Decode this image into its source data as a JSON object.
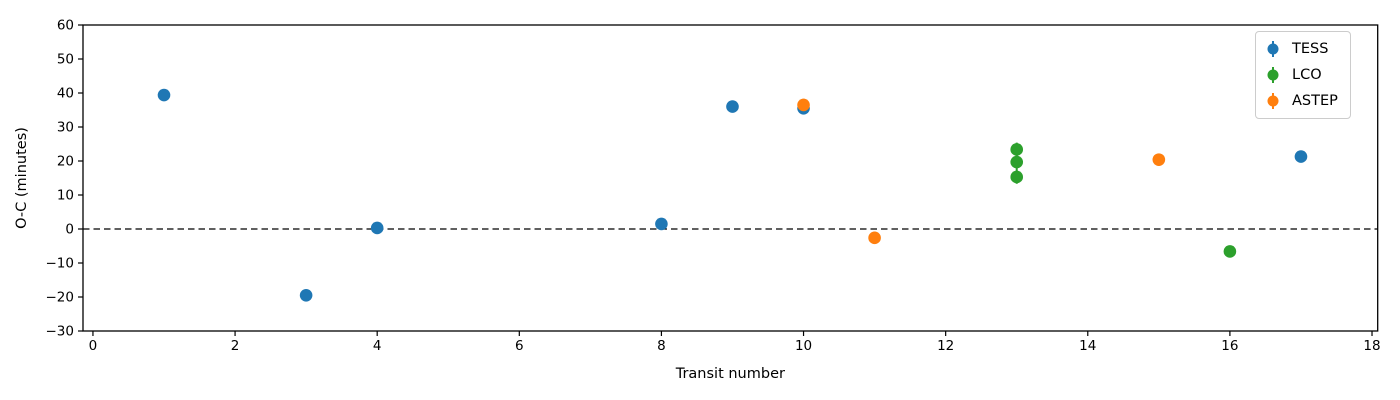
{
  "chart_data": {
    "type": "scatter",
    "title": "",
    "xlabel": "Transit number",
    "ylabel": "O-C (minutes)",
    "xlim": [
      -0.14,
      18.08
    ],
    "ylim": [
      -30,
      60
    ],
    "xticks": [
      0,
      2,
      4,
      6,
      8,
      10,
      12,
      14,
      16,
      18
    ],
    "yticks": [
      -30,
      -20,
      -10,
      0,
      10,
      20,
      30,
      40,
      50,
      60
    ],
    "grid": false,
    "zero_line": {
      "y": 0,
      "style": "dashed",
      "color": "#000000"
    },
    "legend_position": "upper right",
    "series": [
      {
        "name": "TESS",
        "color": "#1f77b4",
        "points": [
          {
            "x": 1,
            "y": 39.4,
            "yerr": 1.5
          },
          {
            "x": 3,
            "y": -19.5,
            "yerr": 1.5
          },
          {
            "x": 4,
            "y": 0.3,
            "yerr": 1.5
          },
          {
            "x": 8,
            "y": 1.5,
            "yerr": 1.5
          },
          {
            "x": 9,
            "y": 36.0,
            "yerr": 1.5
          },
          {
            "x": 10,
            "y": 35.5,
            "yerr": 1.5
          },
          {
            "x": 17,
            "y": 21.3,
            "yerr": 1.5
          }
        ]
      },
      {
        "name": "LCO",
        "color": "#2ca02c",
        "points": [
          {
            "x": 13,
            "y": 23.4,
            "yerr": 2.0
          },
          {
            "x": 13,
            "y": 19.7,
            "yerr": 2.5
          },
          {
            "x": 13,
            "y": 15.3,
            "yerr": 2.0
          },
          {
            "x": 16,
            "y": -6.6,
            "yerr": 1.5
          }
        ]
      },
      {
        "name": "ASTEP",
        "color": "#ff7f0e",
        "points": [
          {
            "x": 10,
            "y": 36.5,
            "yerr": 1.8
          },
          {
            "x": 11,
            "y": -2.6,
            "yerr": 1.8
          },
          {
            "x": 15,
            "y": 20.4,
            "yerr": 1.8
          }
        ]
      }
    ]
  }
}
